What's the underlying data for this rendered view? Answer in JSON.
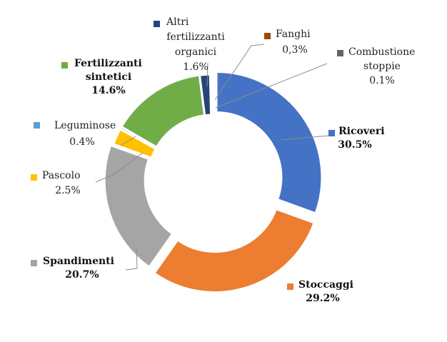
{
  "chart_data": {
    "type": "pie",
    "donut": true,
    "title": "",
    "start_angle_deg": 0,
    "direction": "clockwise",
    "legend_placement": "labels-with-markers-around-ring",
    "slices": [
      {
        "key": "ricoveri",
        "label": "Ricoveri",
        "value_label": "30.5%",
        "value": 30.5,
        "color": "#4472C4",
        "emphasis": "bold"
      },
      {
        "key": "stoccaggi",
        "label": "Stoccaggi",
        "value_label": "29.2%",
        "value": 29.2,
        "color": "#ED7D31",
        "emphasis": "bold"
      },
      {
        "key": "spandimenti",
        "label": "Spandimenti",
        "value_label": "20.7%",
        "value": 20.7,
        "color": "#A5A5A5",
        "emphasis": "bold"
      },
      {
        "key": "pascolo",
        "label": "Pascolo",
        "value_label": "2.5%",
        "value": 2.5,
        "color": "#FFC000",
        "emphasis": "normal"
      },
      {
        "key": "leguminose",
        "label": "Leguminose",
        "value_label": "0.4%",
        "value": 0.4,
        "color": "#5B9BD5",
        "emphasis": "normal"
      },
      {
        "key": "fertilizzanti-sintetici",
        "label_lines": [
          "Fertilizzanti",
          "sintetici"
        ],
        "value_label": "14.6%",
        "value": 14.6,
        "color": "#70AD47",
        "emphasis": "bold"
      },
      {
        "key": "altri-fertilizzanti-organici",
        "label_lines": [
          "Altri",
          "fertilizzanti",
          "organici"
        ],
        "value_label": "1.6%",
        "value": 1.6,
        "color": "#264478",
        "emphasis": "normal"
      },
      {
        "key": "fanghi",
        "label": "Fanghi",
        "value_label": "0,3%",
        "value": 0.3,
        "color": "#9E480E",
        "emphasis": "normal"
      },
      {
        "key": "combustione-stoppie",
        "label_lines": [
          "Combustione",
          "stoppie"
        ],
        "value_label": "0.1%",
        "value": 0.1,
        "color": "#636363",
        "emphasis": "normal"
      }
    ]
  }
}
